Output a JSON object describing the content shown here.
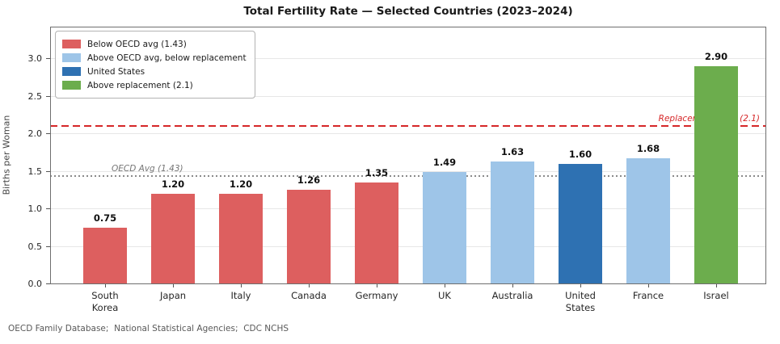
{
  "figure": {
    "title": "Total Fertility Rate — Selected Countries (2023–2024)",
    "ylabel": "Births per Woman",
    "source_note": "OECD Family Database;  National Statistical Agencies;  CDC NCHS"
  },
  "colors": {
    "below_oecd": "#dd5f5f",
    "above_oecd_below_replacement": "#9ec5e8",
    "united_states": "#2e71b2",
    "above_replacement": "#6cad4d",
    "replacement_line": "#d62728",
    "oecd_line": "#8a8a8a",
    "oecd_label": "#757575",
    "grid": "#e7e7e7"
  },
  "legend": {
    "items": [
      {
        "label": "Below OECD avg (1.43)",
        "group": "below_oecd"
      },
      {
        "label": "Above OECD avg, below replacement",
        "group": "above_oecd_below_replacement"
      },
      {
        "label": "United States",
        "group": "united_states"
      },
      {
        "label": "Above replacement (2.1)",
        "group": "above_replacement"
      }
    ]
  },
  "chart_data": {
    "type": "bar",
    "title": "Total Fertility Rate — Selected Countries (2023–2024)",
    "xlabel": "",
    "ylabel": "Births per Woman",
    "categories": [
      "South Korea",
      "Japan",
      "Italy",
      "Canada",
      "Germany",
      "UK",
      "Australia",
      "United States",
      "France",
      "Israel"
    ],
    "tick_labels": [
      "South\nKorea",
      "Japan",
      "Italy",
      "Canada",
      "Germany",
      "UK",
      "Australia",
      "United\nStates",
      "France",
      "Israel"
    ],
    "values": [
      0.75,
      1.2,
      1.2,
      1.26,
      1.35,
      1.49,
      1.63,
      1.6,
      1.68,
      2.9
    ],
    "value_labels": [
      "0.75",
      "1.20",
      "1.20",
      "1.26",
      "1.35",
      "1.49",
      "1.63",
      "1.60",
      "1.68",
      "2.90"
    ],
    "bar_groups": [
      "below_oecd",
      "below_oecd",
      "below_oecd",
      "below_oecd",
      "below_oecd",
      "above_oecd_below_replacement",
      "above_oecd_below_replacement",
      "united_states",
      "above_oecd_below_replacement",
      "above_replacement"
    ],
    "yticks": [
      0.0,
      0.5,
      1.0,
      1.5,
      2.0,
      2.5,
      3.0
    ],
    "ytick_labels": [
      "0.0",
      "0.5",
      "1.0",
      "1.5",
      "2.0",
      "2.5",
      "3.0"
    ],
    "ylim": [
      0,
      3.43
    ],
    "grid": "horizontal",
    "legend_position": "upper left",
    "ref_lines": [
      {
        "name": "replacement-rate-line",
        "value": 2.1,
        "label": "Replacement Rate (2.1)",
        "style": "dashed",
        "color_key": "replacement_line",
        "label_color_key": "replacement_line",
        "label_align": "right"
      },
      {
        "name": "oecd-avg-line",
        "value": 1.43,
        "label": "OECD Avg (1.43)",
        "style": "dotted",
        "color_key": "oecd_line",
        "label_color_key": "oecd_label",
        "label_align": "left"
      }
    ]
  }
}
